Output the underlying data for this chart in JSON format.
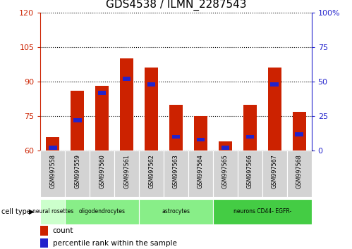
{
  "title": "GDS4538 / ILMN_2287543",
  "samples": [
    "GSM997558",
    "GSM997559",
    "GSM997560",
    "GSM997561",
    "GSM997562",
    "GSM997563",
    "GSM997564",
    "GSM997565",
    "GSM997566",
    "GSM997567",
    "GSM997568"
  ],
  "count_values": [
    66,
    86,
    88,
    100,
    96,
    80,
    75,
    64,
    80,
    96,
    77
  ],
  "percentile_values": [
    2,
    22,
    42,
    52,
    48,
    10,
    8,
    2,
    10,
    48,
    12
  ],
  "ylim_left": [
    60,
    120
  ],
  "ylim_right": [
    0,
    100
  ],
  "yticks_left": [
    60,
    75,
    90,
    105,
    120
  ],
  "yticks_right": [
    0,
    25,
    50,
    75,
    100
  ],
  "yticklabels_right": [
    "0",
    "25",
    "50",
    "75",
    "100%"
  ],
  "bar_color": "#cc2200",
  "marker_color": "#2222cc",
  "bar_width": 0.55,
  "cell_type_groups": [
    {
      "label": "neural rosettes",
      "spans": [
        0,
        1
      ],
      "color": "#ccffcc"
    },
    {
      "label": "oligodendrocytes",
      "spans": [
        1,
        4
      ],
      "color": "#88ee88"
    },
    {
      "label": "astrocytes",
      "spans": [
        4,
        7
      ],
      "color": "#88ee88"
    },
    {
      "label": "neurons CD44- EGFR-",
      "spans": [
        7,
        11
      ],
      "color": "#44cc44"
    }
  ],
  "legend_count_color": "#cc2200",
  "legend_percentile_color": "#2222cc",
  "tick_color_left": "#cc2200",
  "tick_color_right": "#2222cc",
  "sample_box_color": "#d0d0d0",
  "plot_bg": "#ffffff"
}
